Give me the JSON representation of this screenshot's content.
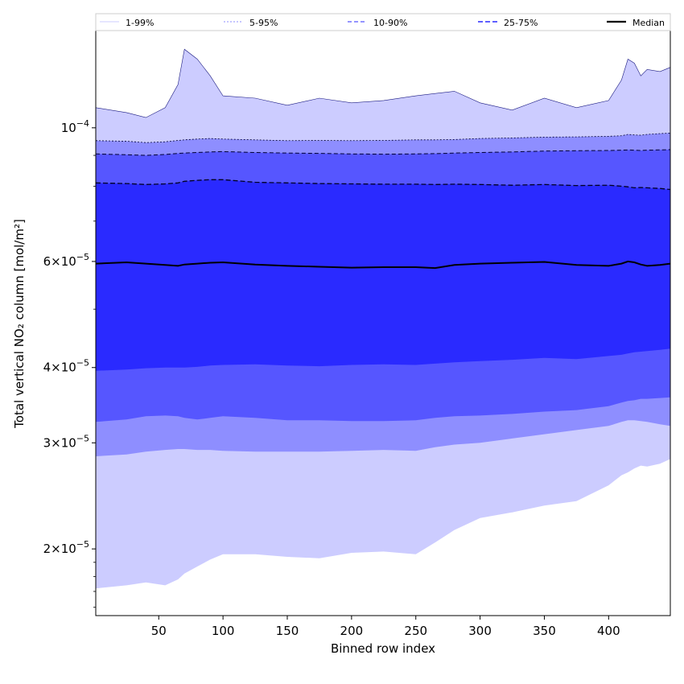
{
  "chart_data": {
    "type": "area",
    "xlabel": "Binned row index",
    "ylabel": "Total vertical NO₂ column [mol/m²]",
    "xlim": [
      1,
      448
    ],
    "ylim": [
      1.55e-05,
      0.000145
    ],
    "yscale": "log",
    "grid": false,
    "legend_placement": "top",
    "x_ticks": [
      50,
      100,
      150,
      200,
      250,
      300,
      350,
      400
    ],
    "y_ticks": [
      {
        "value": 2e-05,
        "mantissa": "2",
        "exponent": "−5"
      },
      {
        "value": 3e-05,
        "mantissa": "3",
        "exponent": "−5"
      },
      {
        "value": 4e-05,
        "mantissa": "4",
        "exponent": "−5"
      },
      {
        "value": 6e-05,
        "mantissa": "6",
        "exponent": "−5"
      },
      {
        "value": 0.0001,
        "mantissa": "",
        "exponent": "−4"
      }
    ],
    "legend": [
      "1-99%",
      "5-95%",
      "10-90%",
      "25-75%",
      "Median"
    ],
    "colors": {
      "band_1_99": "#ccccff",
      "band_5_95": "#8e8eff",
      "band_10_90": "#5656ff",
      "band_25_75": "#2a2aff",
      "median": "#000000"
    },
    "x": [
      1,
      25,
      40,
      55,
      65,
      70,
      80,
      90,
      100,
      125,
      150,
      175,
      200,
      225,
      250,
      265,
      280,
      300,
      325,
      350,
      375,
      400,
      410,
      415,
      420,
      425,
      430,
      440,
      448
    ],
    "series": [
      {
        "name": "1-99%",
        "lower": [
          1.72e-05,
          1.74e-05,
          1.76e-05,
          1.74e-05,
          1.78e-05,
          1.82e-05,
          1.87e-05,
          1.92e-05,
          1.96e-05,
          1.96e-05,
          1.94e-05,
          1.93e-05,
          1.97e-05,
          1.98e-05,
          1.96e-05,
          2.05e-05,
          2.15e-05,
          2.25e-05,
          2.3e-05,
          2.36e-05,
          2.4e-05,
          2.55e-05,
          2.65e-05,
          2.68e-05,
          2.72e-05,
          2.75e-05,
          2.74e-05,
          2.77e-05,
          2.82e-05
        ],
        "upper": [
          0.000108,
          0.000106,
          0.000104,
          0.000108,
          0.000118,
          0.000135,
          0.00013,
          0.000122,
          0.000113,
          0.000112,
          0.000109,
          0.000112,
          0.00011,
          0.000111,
          0.000113,
          0.000114,
          0.000115,
          0.00011,
          0.000107,
          0.000112,
          0.000108,
          0.000111,
          0.00012,
          0.00013,
          0.000128,
          0.000122,
          0.000125,
          0.000124,
          0.000126
        ]
      },
      {
        "name": "5-95%",
        "lower": [
          2.85e-05,
          2.87e-05,
          2.9e-05,
          2.92e-05,
          2.93e-05,
          2.93e-05,
          2.92e-05,
          2.92e-05,
          2.91e-05,
          2.9e-05,
          2.9e-05,
          2.9e-05,
          2.91e-05,
          2.92e-05,
          2.91e-05,
          2.95e-05,
          2.98e-05,
          3e-05,
          3.05e-05,
          3.1e-05,
          3.15e-05,
          3.2e-05,
          3.25e-05,
          3.27e-05,
          3.27e-05,
          3.26e-05,
          3.25e-05,
          3.22e-05,
          3.2e-05
        ],
        "upper": [
          9.52e-05,
          9.5e-05,
          9.45e-05,
          9.48e-05,
          9.53e-05,
          9.55e-05,
          9.58e-05,
          9.6e-05,
          9.58e-05,
          9.55e-05,
          9.52e-05,
          9.53e-05,
          9.52e-05,
          9.53e-05,
          9.55e-05,
          9.55e-05,
          9.56e-05,
          9.6e-05,
          9.62e-05,
          9.65e-05,
          9.66e-05,
          9.68e-05,
          9.7e-05,
          9.75e-05,
          9.73e-05,
          9.72e-05,
          9.75e-05,
          9.78e-05,
          9.8e-05
        ]
      },
      {
        "name": "10-90%",
        "lower": [
          3.25e-05,
          3.28e-05,
          3.32e-05,
          3.33e-05,
          3.32e-05,
          3.3e-05,
          3.28e-05,
          3.3e-05,
          3.32e-05,
          3.3e-05,
          3.27e-05,
          3.27e-05,
          3.26e-05,
          3.26e-05,
          3.27e-05,
          3.3e-05,
          3.32e-05,
          3.33e-05,
          3.35e-05,
          3.38e-05,
          3.4e-05,
          3.45e-05,
          3.5e-05,
          3.52e-05,
          3.53e-05,
          3.55e-05,
          3.55e-05,
          3.56e-05,
          3.57e-05
        ],
        "upper": [
          9.05e-05,
          9.02e-05,
          9e-05,
          9.03e-05,
          9.07e-05,
          9.08e-05,
          9.1e-05,
          9.12e-05,
          9.13e-05,
          9.1e-05,
          9.08e-05,
          9.07e-05,
          9.05e-05,
          9.04e-05,
          9.05e-05,
          9.06e-05,
          9.08e-05,
          9.1e-05,
          9.12e-05,
          9.15e-05,
          9.16e-05,
          9.17e-05,
          9.18e-05,
          9.19e-05,
          9.18e-05,
          9.17e-05,
          9.18e-05,
          9.19e-05,
          9.2e-05
        ]
      },
      {
        "name": "25-75%",
        "lower": [
          3.95e-05,
          3.97e-05,
          3.99e-05,
          4e-05,
          4e-05,
          4e-05,
          4.01e-05,
          4.03e-05,
          4.04e-05,
          4.05e-05,
          4.03e-05,
          4.02e-05,
          4.04e-05,
          4.05e-05,
          4.04e-05,
          4.06e-05,
          4.08e-05,
          4.1e-05,
          4.12e-05,
          4.15e-05,
          4.13e-05,
          4.18e-05,
          4.2e-05,
          4.22e-05,
          4.24e-05,
          4.25e-05,
          4.26e-05,
          4.28e-05,
          4.3e-05
        ],
        "upper": [
          8.1e-05,
          8.08e-05,
          8.05e-05,
          8.07e-05,
          8.1e-05,
          8.15e-05,
          8.18e-05,
          8.2e-05,
          8.2e-05,
          8.12e-05,
          8.1e-05,
          8.08e-05,
          8.07e-05,
          8.06e-05,
          8.06e-05,
          8.05e-05,
          8.06e-05,
          8.05e-05,
          8.03e-05,
          8.05e-05,
          8.02e-05,
          8.03e-05,
          8e-05,
          7.98e-05,
          7.95e-05,
          7.96e-05,
          7.95e-05,
          7.93e-05,
          7.9e-05
        ]
      },
      {
        "name": "Median",
        "values": [
          5.95e-05,
          5.98e-05,
          5.95e-05,
          5.92e-05,
          5.9e-05,
          5.93e-05,
          5.95e-05,
          5.97e-05,
          5.98e-05,
          5.93e-05,
          5.9e-05,
          5.88e-05,
          5.86e-05,
          5.87e-05,
          5.87e-05,
          5.85e-05,
          5.92e-05,
          5.95e-05,
          5.97e-05,
          5.99e-05,
          5.92e-05,
          5.9e-05,
          5.95e-05,
          6e-05,
          5.98e-05,
          5.93e-05,
          5.9e-05,
          5.92e-05,
          5.95e-05
        ]
      }
    ]
  }
}
